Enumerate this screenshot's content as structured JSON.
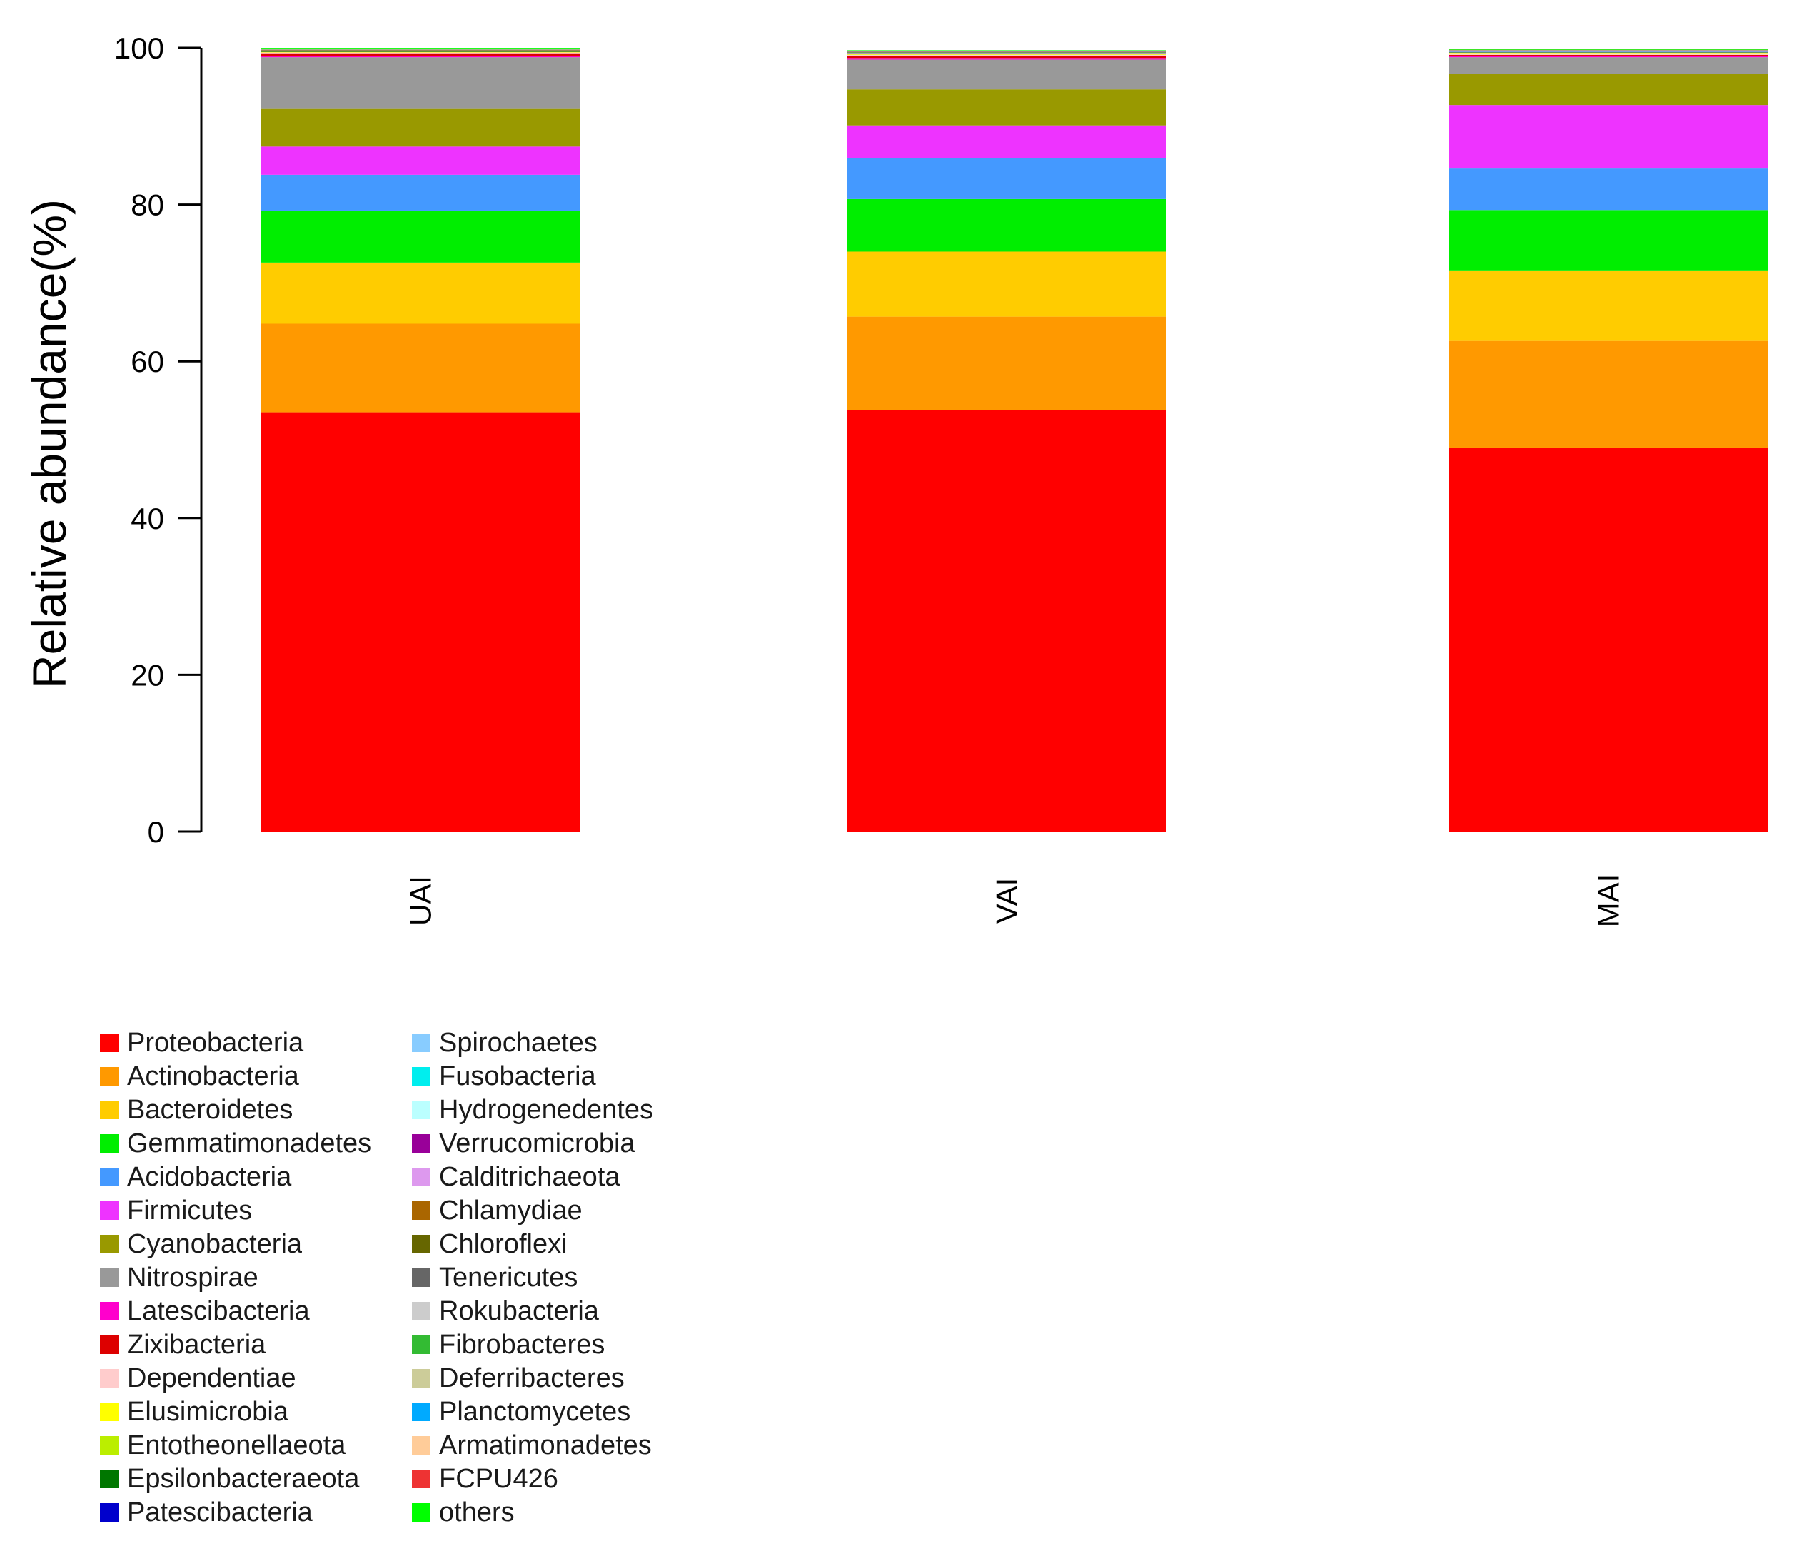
{
  "chart_data": {
    "type": "bar",
    "stacked": true,
    "title": "",
    "xlabel": "",
    "ylabel": "Relative abundance(%)",
    "ylim": [
      0,
      100
    ],
    "yticks": [
      "0",
      "20",
      "40",
      "60",
      "80",
      "100"
    ],
    "categories": [
      "UAI",
      "VAI",
      "MAI"
    ],
    "series": [
      {
        "name": "Proteobacteria",
        "color": "#ff0000",
        "values": [
          53.5,
          53.8,
          49.0
        ]
      },
      {
        "name": "Actinobacteria",
        "color": "#ff9900",
        "values": [
          11.3,
          11.9,
          13.6
        ]
      },
      {
        "name": "Bacteroidetes",
        "color": "#ffcc00",
        "values": [
          7.8,
          8.3,
          9.0
        ]
      },
      {
        "name": "Gemmatimonadetes",
        "color": "#00ee00",
        "values": [
          6.6,
          6.7,
          7.7
        ]
      },
      {
        "name": "Acidobacteria",
        "color": "#4499ff",
        "values": [
          4.6,
          5.2,
          5.3
        ]
      },
      {
        "name": "Firmicutes",
        "color": "#ee33ff",
        "values": [
          3.6,
          4.2,
          8.1
        ]
      },
      {
        "name": "Cyanobacteria",
        "color": "#999900",
        "values": [
          4.8,
          4.6,
          4.0
        ]
      },
      {
        "name": "Nitrospirae",
        "color": "#999999",
        "values": [
          6.6,
          3.8,
          2.1
        ]
      },
      {
        "name": "Latescibacteria",
        "color": "#ff00cc",
        "values": [
          0.2,
          0.2,
          0.2
        ]
      },
      {
        "name": "Zixibacteria",
        "color": "#dd0000",
        "values": [
          0.3,
          0.3,
          0.1
        ]
      },
      {
        "name": "Dependentiae",
        "color": "#ffcccc",
        "values": [
          0.1,
          0.1,
          0.2
        ]
      },
      {
        "name": "Elusimicrobia",
        "color": "#ffff00",
        "values": [
          0.05,
          0.05,
          0.05
        ]
      },
      {
        "name": "Entotheonellaeota",
        "color": "#bbee00",
        "values": [
          0.05,
          0.05,
          0.05
        ]
      },
      {
        "name": "Epsilonbacteraeota",
        "color": "#007700",
        "values": [
          0.05,
          0.05,
          0.05
        ]
      },
      {
        "name": "Patescibacteria",
        "color": "#0000cc",
        "values": [
          0.02,
          0.02,
          0.02
        ]
      },
      {
        "name": "Spirochaetes",
        "color": "#88ccff",
        "values": [
          0.02,
          0.02,
          0.02
        ]
      },
      {
        "name": "Fusobacteria",
        "color": "#00eeee",
        "values": [
          0.02,
          0.02,
          0.02
        ]
      },
      {
        "name": "Hydrogenedentes",
        "color": "#bbffff",
        "values": [
          0.02,
          0.02,
          0.02
        ]
      },
      {
        "name": "Verrucomicrobia",
        "color": "#990099",
        "values": [
          0.02,
          0.02,
          0.02
        ]
      },
      {
        "name": "Calditrichaeota",
        "color": "#dd99ee",
        "values": [
          0.02,
          0.02,
          0.02
        ]
      },
      {
        "name": "Chlamydiae",
        "color": "#aa6600",
        "values": [
          0.02,
          0.02,
          0.02
        ]
      },
      {
        "name": "Chloroflexi",
        "color": "#666600",
        "values": [
          0.02,
          0.02,
          0.02
        ]
      },
      {
        "name": "Tenericutes",
        "color": "#666666",
        "values": [
          0.02,
          0.02,
          0.02
        ]
      },
      {
        "name": "Rokubacteria",
        "color": "#cccccc",
        "values": [
          0.02,
          0.02,
          0.02
        ]
      },
      {
        "name": "Fibrobacteres",
        "color": "#33bb33",
        "values": [
          0.02,
          0.02,
          0.02
        ]
      },
      {
        "name": "Deferribacteres",
        "color": "#cccc99",
        "values": [
          0.02,
          0.02,
          0.02
        ]
      },
      {
        "name": "Planctomycetes",
        "color": "#00aaff",
        "values": [
          0.02,
          0.02,
          0.02
        ]
      },
      {
        "name": "Armatimonadetes",
        "color": "#ffcc99",
        "values": [
          0.02,
          0.02,
          0.02
        ]
      },
      {
        "name": "FCPU426",
        "color": "#ee3333",
        "values": [
          0.02,
          0.02,
          0.02
        ]
      },
      {
        "name": "others",
        "color": "#00ff00",
        "values": [
          0.14,
          0.14,
          0.14
        ]
      }
    ]
  }
}
